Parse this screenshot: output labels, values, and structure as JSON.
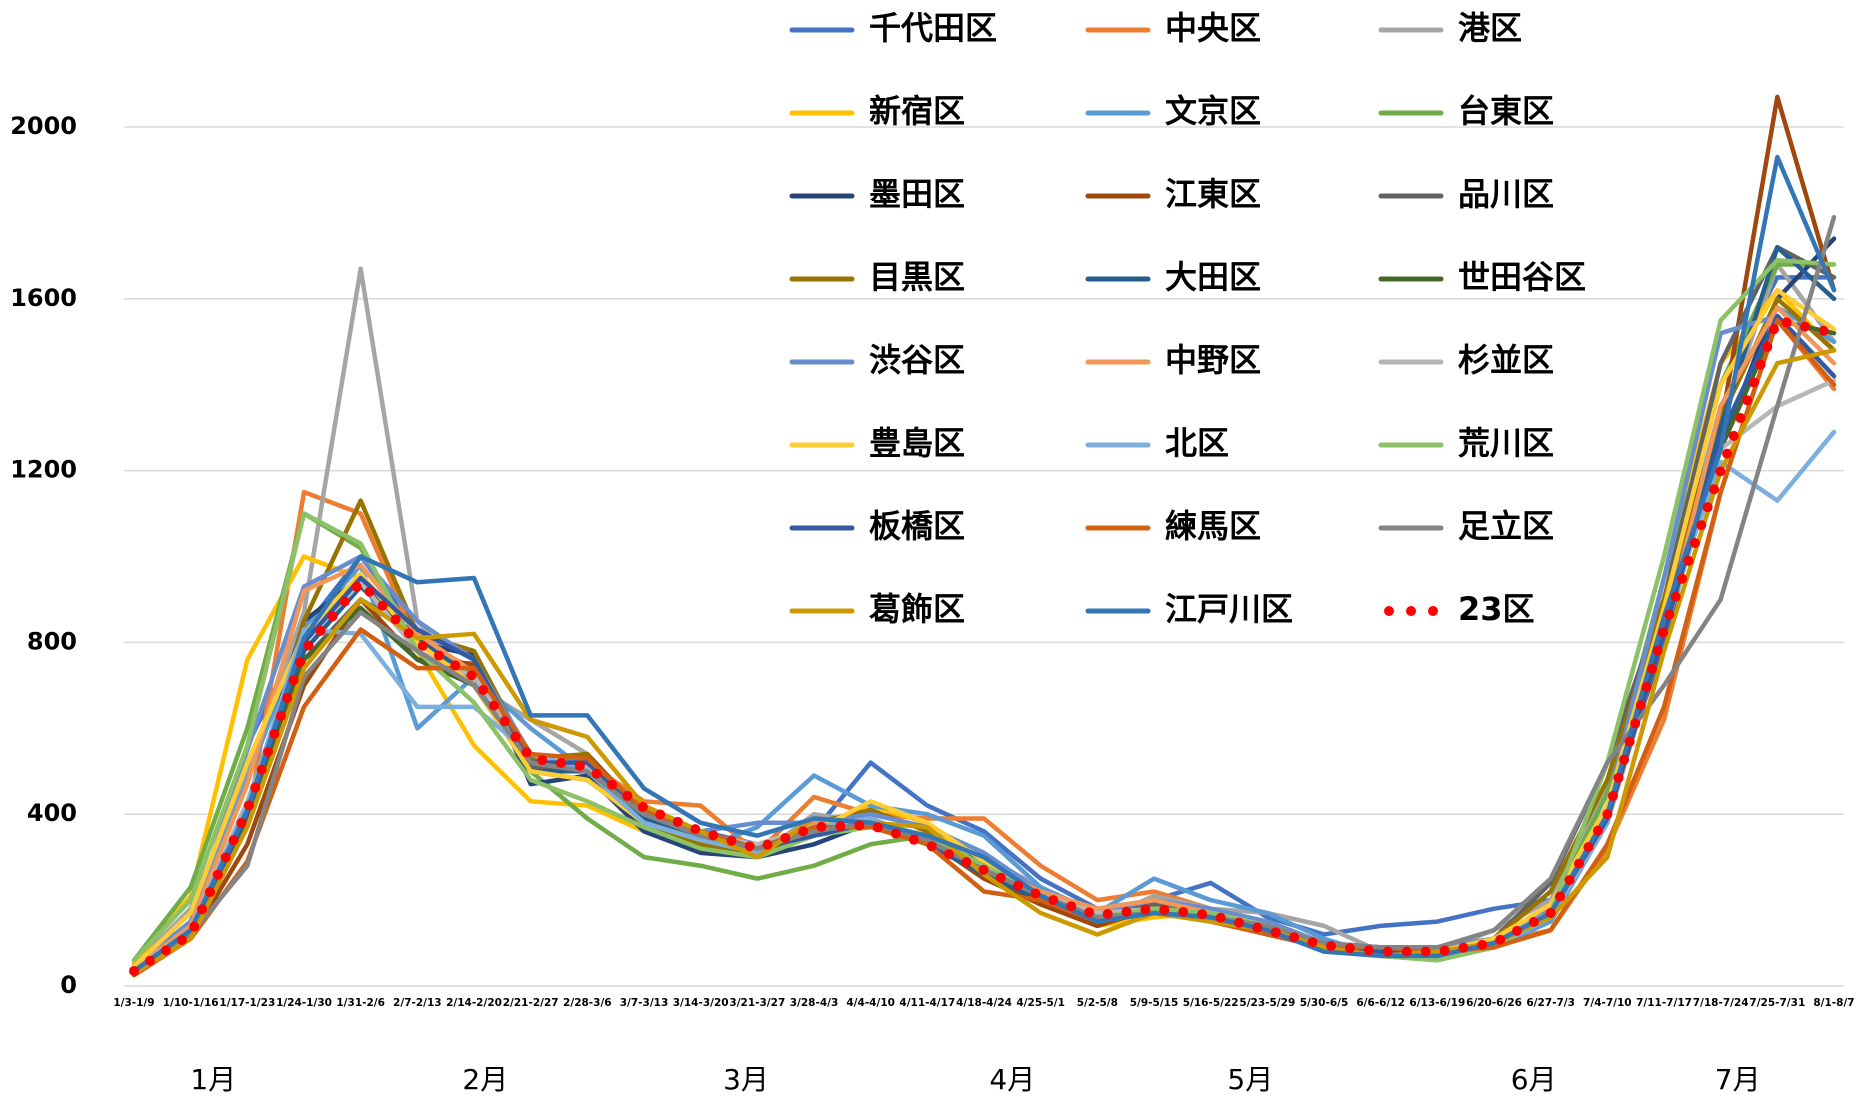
{
  "chart_data": {
    "type": "line",
    "categories": [
      "1/3-1/9",
      "1/10-1/16",
      "1/17-1/23",
      "1/24-1/30",
      "1/31-2/6",
      "2/7-2/13",
      "2/14-2/20",
      "2/21-2/27",
      "2/28-3/6",
      "3/7-3/13",
      "3/14-3/20",
      "3/21-3/27",
      "3/28-4/3",
      "4/4-4/10",
      "4/11-4/17",
      "4/18-4/24",
      "4/25-5/1",
      "5/2-5/8",
      "5/9-5/15",
      "5/16-5/22",
      "5/23-5/29",
      "5/30-6/5",
      "6/6-6/12",
      "6/13-6/19",
      "6/20-6/26",
      "6/27-7/3",
      "7/4-7/10",
      "7/11-7/17",
      "7/18-7/24",
      "7/25-7/31",
      "8/1-8/7"
    ],
    "month_labels": [
      "1月",
      "2月",
      "3月",
      "4月",
      "5月",
      "6月",
      "7月"
    ],
    "ylim": [
      0,
      2000
    ],
    "yticks": [
      0,
      400,
      800,
      1200,
      1600,
      2000
    ],
    "grid": true,
    "series": [
      {
        "name": "千代田区",
        "color": "#4472C4",
        "values": [
          40,
          130,
          560,
          830,
          1000,
          830,
          760,
          500,
          520,
          400,
          360,
          330,
          360,
          520,
          420,
          360,
          250,
          180,
          200,
          240,
          160,
          120,
          140,
          150,
          180,
          200,
          420,
          900,
          1400,
          1650,
          1650
        ]
      },
      {
        "name": "中央区",
        "color": "#ED7D31",
        "values": [
          30,
          110,
          380,
          1150,
          1100,
          800,
          740,
          540,
          520,
          430,
          420,
          310,
          440,
          400,
          390,
          390,
          280,
          200,
          220,
          180,
          140,
          100,
          90,
          90,
          100,
          130,
          320,
          620,
          1150,
          1550,
          1390
        ]
      },
      {
        "name": "港区",
        "color": "#A5A5A5",
        "values": [
          50,
          180,
          500,
          870,
          1670,
          850,
          700,
          620,
          540,
          380,
          340,
          300,
          400,
          380,
          330,
          300,
          230,
          150,
          210,
          180,
          170,
          140,
          80,
          80,
          130,
          200,
          460,
          900,
          1300,
          1680,
          1500
        ]
      },
      {
        "name": "新宿区",
        "color": "#FFC000",
        "values": [
          55,
          210,
          760,
          1000,
          950,
          780,
          560,
          430,
          420,
          360,
          330,
          300,
          350,
          420,
          380,
          280,
          190,
          140,
          160,
          170,
          130,
          100,
          80,
          80,
          110,
          180,
          400,
          950,
          1450,
          1620,
          1480
        ]
      },
      {
        "name": "文京区",
        "color": "#5B9BD5",
        "values": [
          40,
          150,
          480,
          830,
          980,
          600,
          720,
          600,
          500,
          380,
          320,
          370,
          490,
          420,
          400,
          350,
          230,
          170,
          250,
          200,
          170,
          110,
          70,
          70,
          90,
          150,
          380,
          850,
          1350,
          1580,
          1500
        ]
      },
      {
        "name": "台東区",
        "color": "#70AD47",
        "values": [
          60,
          230,
          600,
          1100,
          1020,
          780,
          700,
          500,
          390,
          300,
          280,
          250,
          280,
          330,
          350,
          280,
          200,
          140,
          190,
          170,
          150,
          100,
          70,
          60,
          90,
          180,
          450,
          950,
          1400,
          1680,
          1680
        ]
      },
      {
        "name": "墨田区",
        "color": "#264478",
        "values": [
          30,
          120,
          400,
          850,
          950,
          800,
          770,
          470,
          490,
          360,
          310,
          300,
          330,
          380,
          330,
          290,
          200,
          150,
          170,
          160,
          120,
          90,
          80,
          70,
          90,
          180,
          420,
          820,
          1250,
          1600,
          1740
        ]
      },
      {
        "name": "江東区",
        "color": "#9E480E",
        "values": [
          30,
          110,
          330,
          700,
          900,
          760,
          750,
          520,
          540,
          400,
          330,
          320,
          360,
          390,
          340,
          250,
          190,
          140,
          180,
          150,
          130,
          100,
          90,
          90,
          100,
          170,
          410,
          850,
          1300,
          2070,
          1620
        ]
      },
      {
        "name": "品川区",
        "color": "#636363",
        "values": [
          35,
          130,
          420,
          760,
          900,
          820,
          700,
          510,
          500,
          390,
          340,
          300,
          360,
          380,
          350,
          270,
          210,
          160,
          190,
          170,
          140,
          100,
          80,
          80,
          110,
          240,
          520,
          900,
          1450,
          1720,
          1650
        ]
      },
      {
        "name": "目黒区",
        "color": "#997300",
        "values": [
          40,
          150,
          380,
          850,
          1130,
          820,
          780,
          530,
          540,
          370,
          330,
          310,
          380,
          410,
          360,
          270,
          210,
          160,
          180,
          170,
          130,
          90,
          90,
          90,
          110,
          220,
          480,
          900,
          1320,
          1600,
          1480
        ]
      },
      {
        "name": "大田区",
        "color": "#255E91",
        "values": [
          30,
          120,
          380,
          780,
          930,
          810,
          720,
          500,
          500,
          390,
          350,
          310,
          350,
          380,
          330,
          260,
          200,
          160,
          170,
          160,
          130,
          90,
          80,
          80,
          100,
          180,
          400,
          800,
          1300,
          1720,
          1600
        ]
      },
      {
        "name": "世田谷区",
        "color": "#43682B",
        "values": [
          35,
          120,
          390,
          760,
          880,
          760,
          700,
          500,
          480,
          380,
          340,
          310,
          360,
          380,
          340,
          270,
          210,
          160,
          170,
          160,
          130,
          90,
          80,
          80,
          100,
          160,
          400,
          850,
          1250,
          1550,
          1520
        ]
      },
      {
        "name": "渋谷区",
        "color": "#698ED0",
        "values": [
          45,
          150,
          550,
          930,
          1000,
          850,
          760,
          540,
          510,
          400,
          360,
          380,
          380,
          400,
          370,
          310,
          220,
          170,
          200,
          180,
          150,
          100,
          90,
          90,
          110,
          180,
          420,
          950,
          1520,
          1560,
          1420
        ]
      },
      {
        "name": "中野区",
        "color": "#F1975A",
        "values": [
          40,
          140,
          470,
          920,
          980,
          820,
          730,
          520,
          500,
          400,
          360,
          320,
          380,
          380,
          350,
          280,
          220,
          180,
          200,
          170,
          140,
          100,
          80,
          80,
          100,
          160,
          380,
          820,
          1350,
          1580,
          1450
        ]
      },
      {
        "name": "杉並区",
        "color": "#B7B7B7",
        "values": [
          40,
          130,
          430,
          800,
          940,
          780,
          720,
          540,
          510,
          400,
          350,
          330,
          370,
          380,
          350,
          280,
          210,
          170,
          180,
          170,
          140,
          100,
          70,
          70,
          110,
          170,
          390,
          820,
          1250,
          1350,
          1410
        ]
      },
      {
        "name": "豊島区",
        "color": "#FFCD33",
        "values": [
          45,
          170,
          520,
          820,
          960,
          800,
          700,
          500,
          480,
          380,
          340,
          320,
          360,
          430,
          380,
          290,
          210,
          150,
          180,
          170,
          140,
          100,
          80,
          80,
          110,
          190,
          420,
          880,
          1400,
          1620,
          1530
        ]
      },
      {
        "name": "北区",
        "color": "#7CAFDD",
        "values": [
          35,
          130,
          420,
          830,
          820,
          650,
          650,
          540,
          500,
          380,
          340,
          310,
          370,
          390,
          340,
          280,
          210,
          160,
          170,
          160,
          130,
          90,
          80,
          70,
          90,
          160,
          380,
          850,
          1220,
          1130,
          1290
        ]
      },
      {
        "name": "荒川区",
        "color": "#8CC168",
        "values": [
          60,
          200,
          560,
          1100,
          1030,
          780,
          660,
          480,
          430,
          370,
          320,
          300,
          350,
          370,
          350,
          280,
          210,
          160,
          180,
          170,
          140,
          100,
          70,
          60,
          90,
          170,
          520,
          1000,
          1550,
          1690,
          1680
        ]
      },
      {
        "name": "板橋区",
        "color": "#335AA1",
        "values": [
          30,
          120,
          400,
          800,
          950,
          830,
          760,
          520,
          520,
          400,
          350,
          320,
          350,
          380,
          330,
          270,
          210,
          160,
          170,
          160,
          130,
          90,
          80,
          80,
          100,
          170,
          390,
          820,
          1280,
          1560,
          1420
        ]
      },
      {
        "name": "練馬区",
        "color": "#D26012",
        "values": [
          25,
          110,
          290,
          650,
          830,
          740,
          740,
          540,
          530,
          410,
          360,
          320,
          370,
          370,
          330,
          220,
          200,
          150,
          170,
          150,
          120,
          90,
          90,
          80,
          90,
          130,
          330,
          650,
          1150,
          1550,
          1400
        ]
      },
      {
        "name": "足立区",
        "color": "#848484",
        "values": [
          35,
          120,
          280,
          720,
          870,
          780,
          700,
          520,
          500,
          400,
          350,
          320,
          360,
          380,
          340,
          270,
          210,
          160,
          170,
          160,
          140,
          100,
          90,
          90,
          130,
          250,
          520,
          700,
          900,
          1350,
          1790
        ]
      },
      {
        "name": "葛飾区",
        "color": "#CC9A00",
        "values": [
          30,
          110,
          370,
          740,
          900,
          810,
          820,
          620,
          580,
          420,
          360,
          300,
          390,
          380,
          370,
          260,
          170,
          120,
          170,
          150,
          130,
          90,
          70,
          80,
          100,
          160,
          300,
          780,
          1200,
          1450,
          1480
        ]
      },
      {
        "name": "江戸川区",
        "color": "#3276B5",
        "values": [
          35,
          130,
          410,
          810,
          1000,
          940,
          950,
          630,
          630,
          460,
          380,
          350,
          390,
          380,
          350,
          300,
          210,
          150,
          170,
          160,
          130,
          80,
          70,
          70,
          100,
          170,
          400,
          860,
          1250,
          1930,
          1620
        ]
      },
      {
        "name": "23区",
        "color": "#FF0000",
        "style": "dotted",
        "values": [
          35,
          120,
          410,
          780,
          940,
          800,
          720,
          530,
          510,
          415,
          360,
          320,
          370,
          375,
          330,
          270,
          210,
          165,
          180,
          165,
          130,
          95,
          80,
          80,
          100,
          170,
          400,
          830,
          1200,
          1550,
          1520
        ]
      }
    ]
  }
}
